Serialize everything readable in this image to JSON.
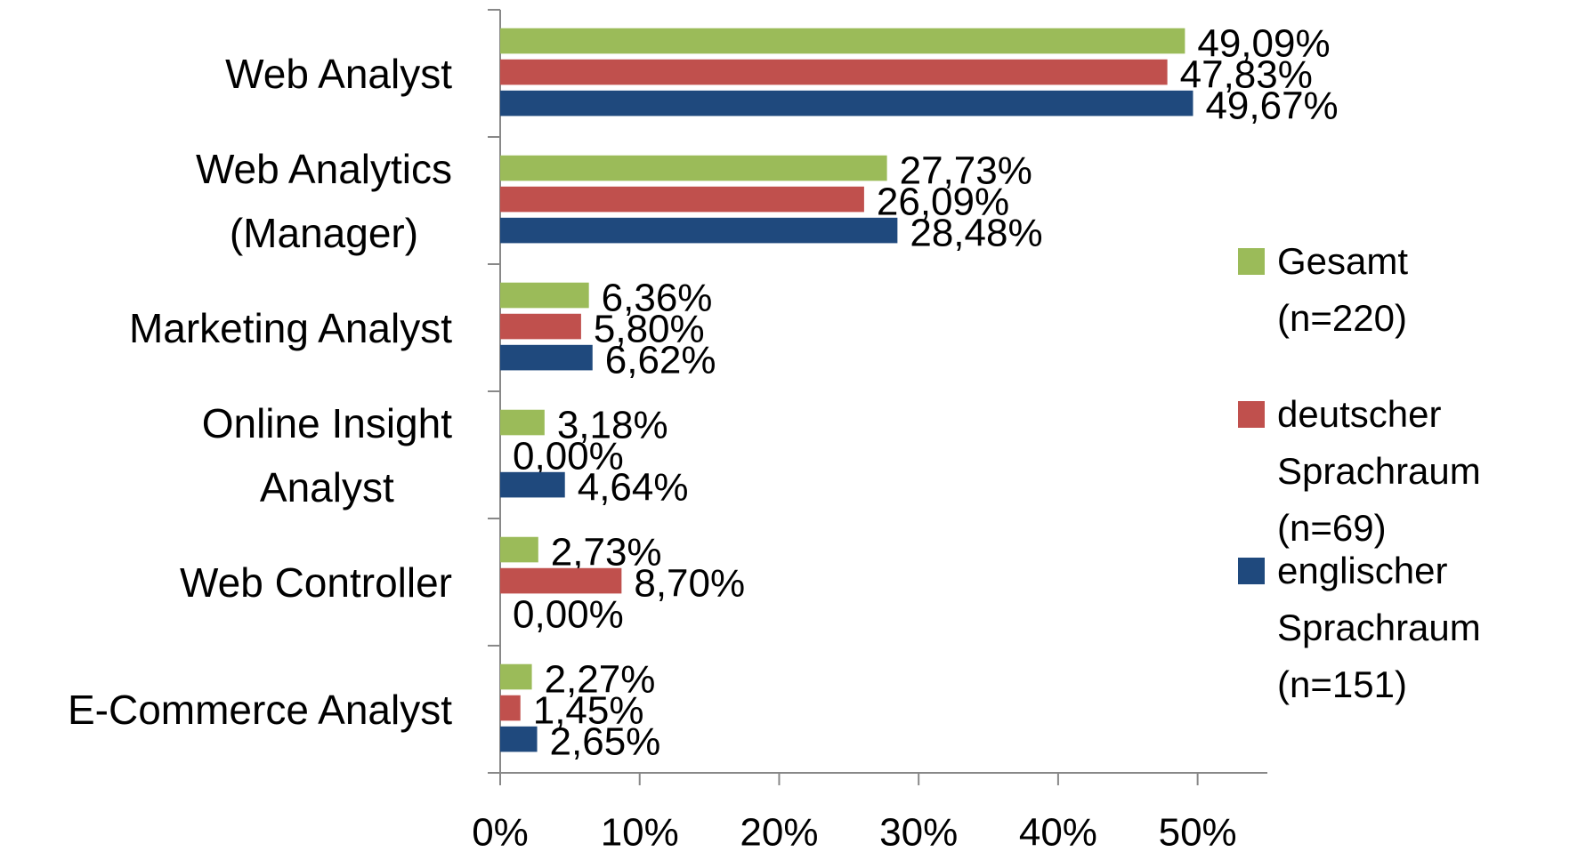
{
  "chart_data": {
    "type": "bar",
    "orientation": "horizontal",
    "categories": [
      "Web Analyst",
      "Web Analytics\n(Manager)",
      "Marketing Analyst",
      "Online Insight\nAnalyst",
      "Web Controller",
      "E-Commerce Analyst"
    ],
    "series": [
      {
        "name": "Gesamt (n=220)",
        "color": "#9bbb59",
        "values": [
          49.09,
          27.73,
          6.36,
          3.18,
          2.73,
          2.27
        ],
        "value_labels": [
          "49,09%",
          "27,73%",
          "6,36%",
          "3,18%",
          "2,73%",
          "2,27%"
        ]
      },
      {
        "name": "deutscher Sprachraum (n=69)",
        "color": "#c0504d",
        "values": [
          47.83,
          26.09,
          5.8,
          0.0,
          8.7,
          1.45
        ],
        "value_labels": [
          "47,83%",
          "26,09%",
          "5,80%",
          "0,00%",
          "8,70%",
          "1,45%"
        ]
      },
      {
        "name": "englischer Sprachraum (n=151)",
        "color": "#1f497d",
        "values": [
          49.67,
          28.48,
          6.62,
          4.64,
          0.0,
          2.65
        ],
        "value_labels": [
          "49,67%",
          "28,48%",
          "6,62%",
          "4,64%",
          "0,00%",
          "2,65%"
        ]
      }
    ],
    "xlim": [
      0,
      55
    ],
    "xticks": [
      {
        "value": 0,
        "label": "0%"
      },
      {
        "value": 10,
        "label": "10%"
      },
      {
        "value": 20,
        "label": "20%"
      },
      {
        "value": 30,
        "label": "30%"
      },
      {
        "value": 40,
        "label": "40%"
      },
      {
        "value": 50,
        "label": "50%"
      }
    ],
    "legend": "right"
  }
}
